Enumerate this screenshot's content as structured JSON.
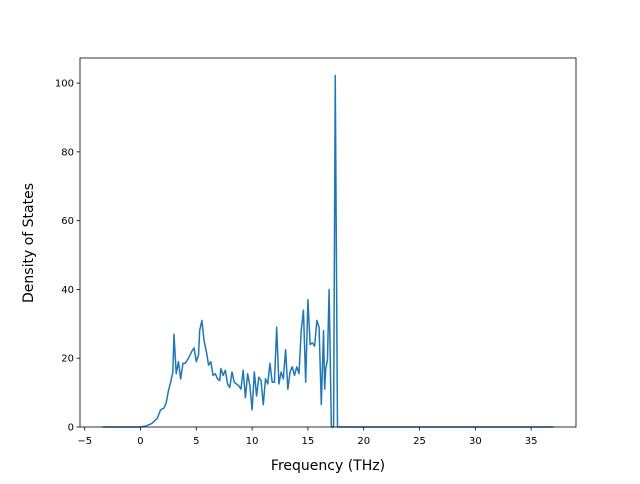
{
  "chart_data": {
    "type": "line",
    "xlabel": "Frequency (THz)",
    "ylabel": "Density of States",
    "x": [
      -3.4,
      0,
      0.5,
      1,
      1.5,
      1.8,
      2.1,
      2.3,
      2.5,
      2.7,
      2.9,
      3.0,
      3.2,
      3.4,
      3.6,
      3.8,
      4.0,
      4.3,
      4.6,
      4.8,
      5.0,
      5.2,
      5.3,
      5.5,
      5.7,
      5.9,
      6.1,
      6.3,
      6.5,
      6.7,
      6.9,
      7.1,
      7.2,
      7.4,
      7.6,
      7.8,
      8.0,
      8.2,
      8.4,
      8.6,
      8.8,
      9.0,
      9.2,
      9.4,
      9.6,
      9.8,
      10.0,
      10.2,
      10.4,
      10.6,
      10.8,
      11.0,
      11.2,
      11.4,
      11.6,
      11.8,
      12.0,
      12.2,
      12.4,
      12.6,
      12.8,
      13.0,
      13.2,
      13.4,
      13.6,
      13.8,
      14.0,
      14.2,
      14.4,
      14.6,
      14.8,
      15.0,
      15.2,
      15.4,
      15.6,
      15.8,
      16.0,
      16.2,
      16.4,
      16.5,
      16.6,
      16.75,
      16.9,
      17.1,
      17.3,
      17.45,
      17.65,
      37
    ],
    "series": [
      {
        "color": "#1f77b4",
        "values": [
          0,
          0,
          0.3,
          1,
          2.5,
          5,
          5.5,
          7,
          10.5,
          13,
          16,
          27,
          15.5,
          19,
          14,
          18.5,
          18.5,
          20,
          22,
          23,
          19,
          21,
          28,
          31,
          25,
          22,
          18,
          19,
          15,
          15.5,
          14,
          13.5,
          17,
          15,
          16.5,
          12.5,
          11.5,
          16,
          13,
          12.5,
          12,
          11,
          16.5,
          8.5,
          15.5,
          12,
          5,
          16,
          9,
          14.5,
          13.5,
          6.5,
          14,
          12.5,
          18.5,
          13,
          13,
          29,
          12.5,
          16,
          14,
          22.5,
          11,
          16,
          17.5,
          15,
          17.5,
          15.5,
          28,
          34,
          13,
          37,
          24,
          24.5,
          23.5,
          31,
          29,
          6.5,
          28,
          11,
          17,
          19.5,
          40,
          0,
          0,
          102.2,
          0,
          0
        ]
      }
    ],
    "xlim": [
      -5.42,
      39.02
    ],
    "ylim": [
      0,
      107.3
    ],
    "xticks": [
      {
        "value": -5,
        "label": "−5"
      },
      0,
      5,
      10,
      15,
      20,
      25,
      30,
      35
    ],
    "yticks": [
      0,
      20,
      40,
      60,
      80,
      100
    ]
  }
}
